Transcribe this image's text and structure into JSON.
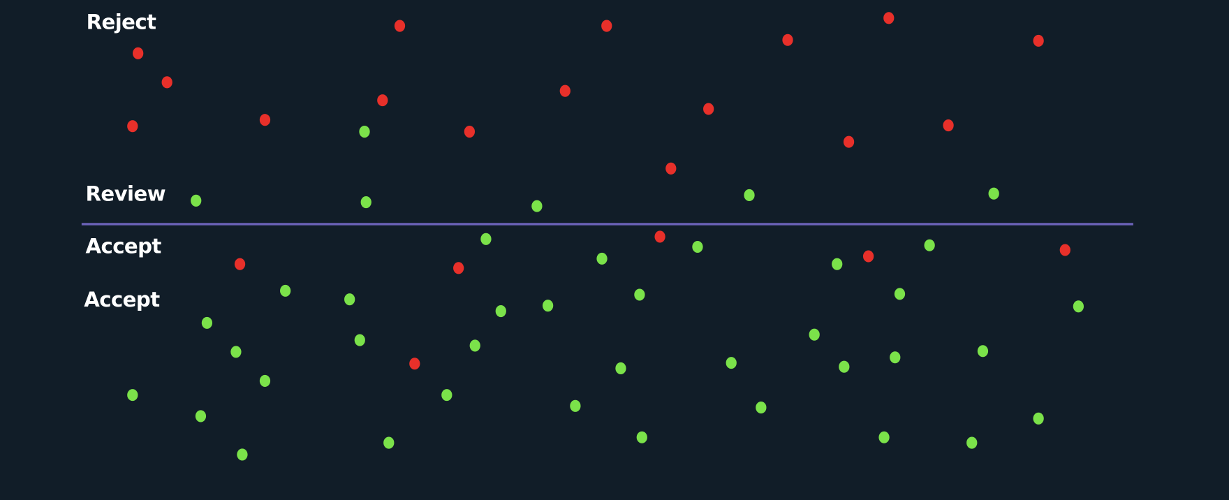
{
  "labels": {
    "reject": "Reject",
    "review": "Review",
    "accept_1": "Accept",
    "accept_2": "Accept"
  },
  "colors": {
    "background": "#111d28",
    "reject_dot": "#e8302a",
    "accept_dot": "#7be24a",
    "threshold_line": "#6b62b8",
    "label_text": "#ffffff"
  }
}
